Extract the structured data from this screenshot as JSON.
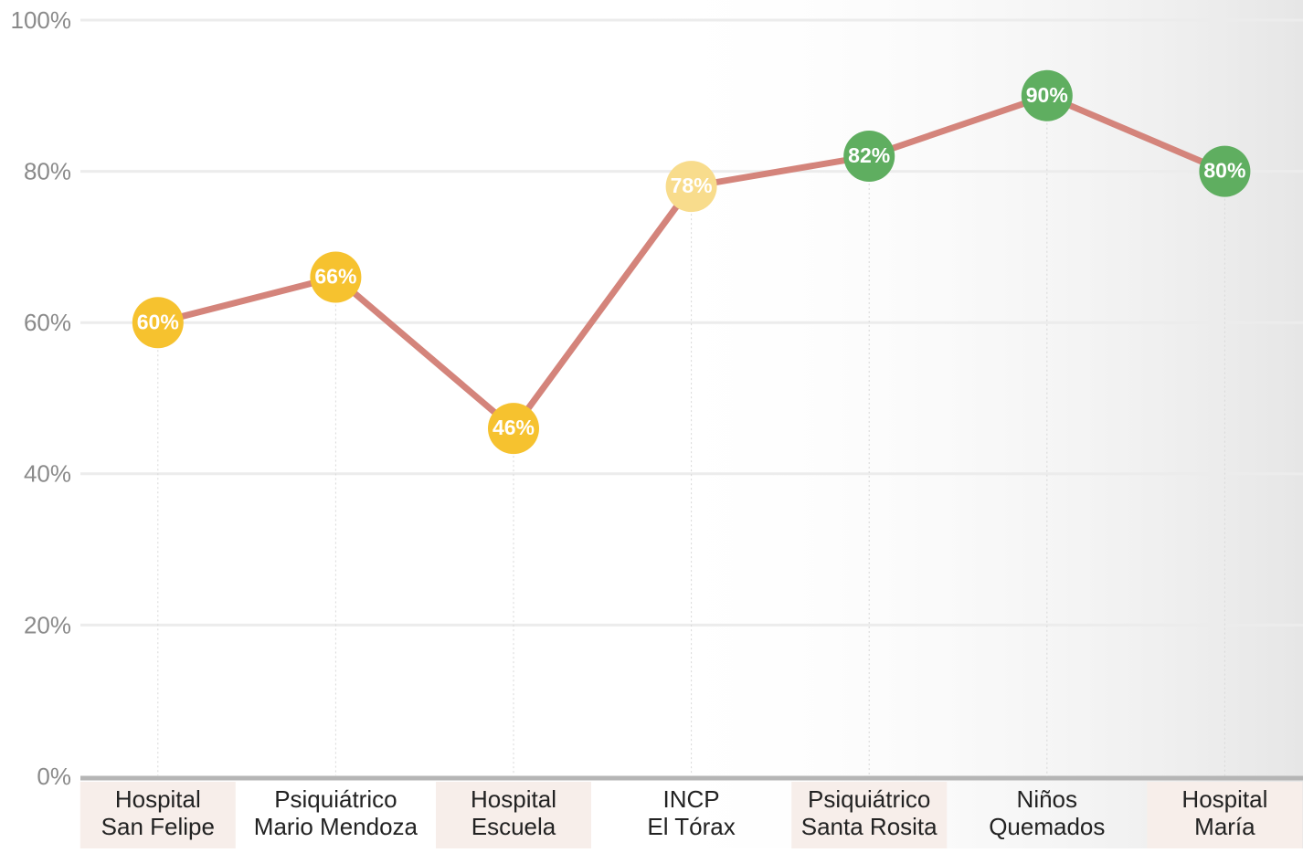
{
  "chart_data": {
    "type": "line",
    "categories": [
      [
        "Hospital",
        "San Felipe"
      ],
      [
        "Psiquiátrico",
        "Mario Mendoza"
      ],
      [
        "Hospital",
        "Escuela"
      ],
      [
        "INCP",
        "El Tórax"
      ],
      [
        "Psiquiátrico",
        "Santa Rosita"
      ],
      [
        "Niños",
        "Quemados"
      ],
      [
        "Hospital",
        "María"
      ]
    ],
    "values": [
      60,
      66,
      46,
      78,
      82,
      90,
      80
    ],
    "value_labels": [
      "60%",
      "66%",
      "46%",
      "78%",
      "82%",
      "90%",
      "80%"
    ],
    "color": "#d4847b",
    "point_colors": [
      "#f6c22f",
      "#f6c22f",
      "#f6c22f",
      "#f8dc8c",
      "#5fae60",
      "#5fae60",
      "#5fae60"
    ],
    "ylim": [
      0,
      100
    ],
    "yticks": [
      {
        "value": 0,
        "label": "0%"
      },
      {
        "value": 20,
        "label": "20%"
      },
      {
        "value": 40,
        "label": "40%"
      },
      {
        "value": 60,
        "label": "60%"
      },
      {
        "value": 80,
        "label": "80%"
      },
      {
        "value": 100,
        "label": "100%"
      }
    ],
    "grid": true
  }
}
